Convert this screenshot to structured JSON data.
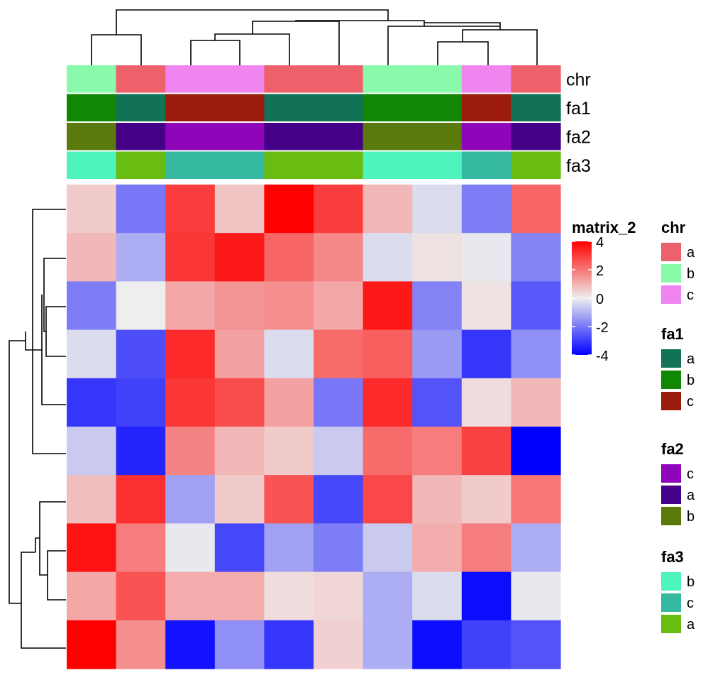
{
  "chart_data": {
    "type": "heatmap",
    "rows": 10,
    "cols": 10,
    "values": [
      [
        0.6,
        -2.0,
        3.0,
        0.7,
        4.2,
        3.0,
        0.9,
        -0.3,
        -1.9,
        2.3
      ],
      [
        0.9,
        -1.1,
        3.1,
        3.6,
        2.3,
        1.7,
        -0.3,
        0.2,
        -0.1,
        -1.8
      ],
      [
        -1.9,
        0.0,
        1.2,
        1.5,
        1.6,
        1.2,
        3.6,
        -1.8,
        0.2,
        -2.5
      ],
      [
        -0.3,
        -2.7,
        3.3,
        1.3,
        -0.3,
        2.2,
        2.4,
        -1.4,
        -3.1,
        -1.6
      ],
      [
        -3.1,
        -2.9,
        3.1,
        2.7,
        1.3,
        -2.0,
        3.3,
        -2.6,
        0.3,
        0.9
      ],
      [
        -0.6,
        -3.4,
        1.8,
        0.9,
        0.6,
        -0.6,
        2.2,
        1.9,
        2.9,
        -4.4
      ],
      [
        0.8,
        3.2,
        -1.3,
        0.6,
        2.6,
        -2.8,
        2.8,
        0.9,
        0.6,
        2.0
      ],
      [
        3.7,
        1.9,
        -0.1,
        -2.8,
        -1.3,
        -1.9,
        -0.6,
        1.1,
        1.9,
        -1.1
      ],
      [
        1.2,
        2.6,
        1.1,
        1.1,
        0.3,
        0.4,
        -1.1,
        -0.3,
        -3.8,
        -0.1
      ],
      [
        4.2,
        1.6,
        -3.7,
        -1.6,
        -3.1,
        0.5,
        -1.1,
        -3.8,
        -2.9,
        -2.6
      ]
    ],
    "color_scale": {
      "title": "matrix_2",
      "ticks": [
        "4",
        "2",
        "0",
        "-2",
        "-4"
      ],
      "range": [
        -4,
        4
      ],
      "low_color": "#0000FF",
      "mid_color": "#EEEEEE",
      "high_color": "#FF0000"
    },
    "column_annotations": [
      {
        "name": "chr",
        "label": "chr",
        "values": [
          "b",
          "a",
          "c",
          "c",
          "a",
          "a",
          "b",
          "b",
          "c",
          "a"
        ],
        "colors": {
          "a": "#EE616A",
          "b": "#89F9AC",
          "c": "#F085EF"
        },
        "legend_order": [
          "a",
          "b",
          "c"
        ]
      },
      {
        "name": "fa1",
        "label": "fa1",
        "values": [
          "b",
          "a",
          "c",
          "c",
          "a",
          "a",
          "b",
          "b",
          "c",
          "a"
        ],
        "colors": {
          "a": "#117256",
          "b": "#108806",
          "c": "#9B1B0C"
        },
        "legend_order": [
          "a",
          "b",
          "c"
        ]
      },
      {
        "name": "fa2",
        "label": "fa2",
        "values": [
          "b",
          "a",
          "c",
          "c",
          "a",
          "a",
          "b",
          "b",
          "c",
          "a"
        ],
        "colors": {
          "c": "#8E05BA",
          "a": "#440086",
          "b": "#5A7A0C"
        },
        "legend_order": [
          "c",
          "a",
          "b"
        ]
      },
      {
        "name": "fa3",
        "label": "fa3",
        "values": [
          "b",
          "a",
          "c",
          "c",
          "a",
          "a",
          "b",
          "b",
          "c",
          "a"
        ],
        "colors": {
          "b": "#4DF5BD",
          "c": "#35B9A1",
          "a": "#68BC12"
        },
        "legend_order": [
          "b",
          "c",
          "a"
        ]
      }
    ],
    "grid": false
  }
}
